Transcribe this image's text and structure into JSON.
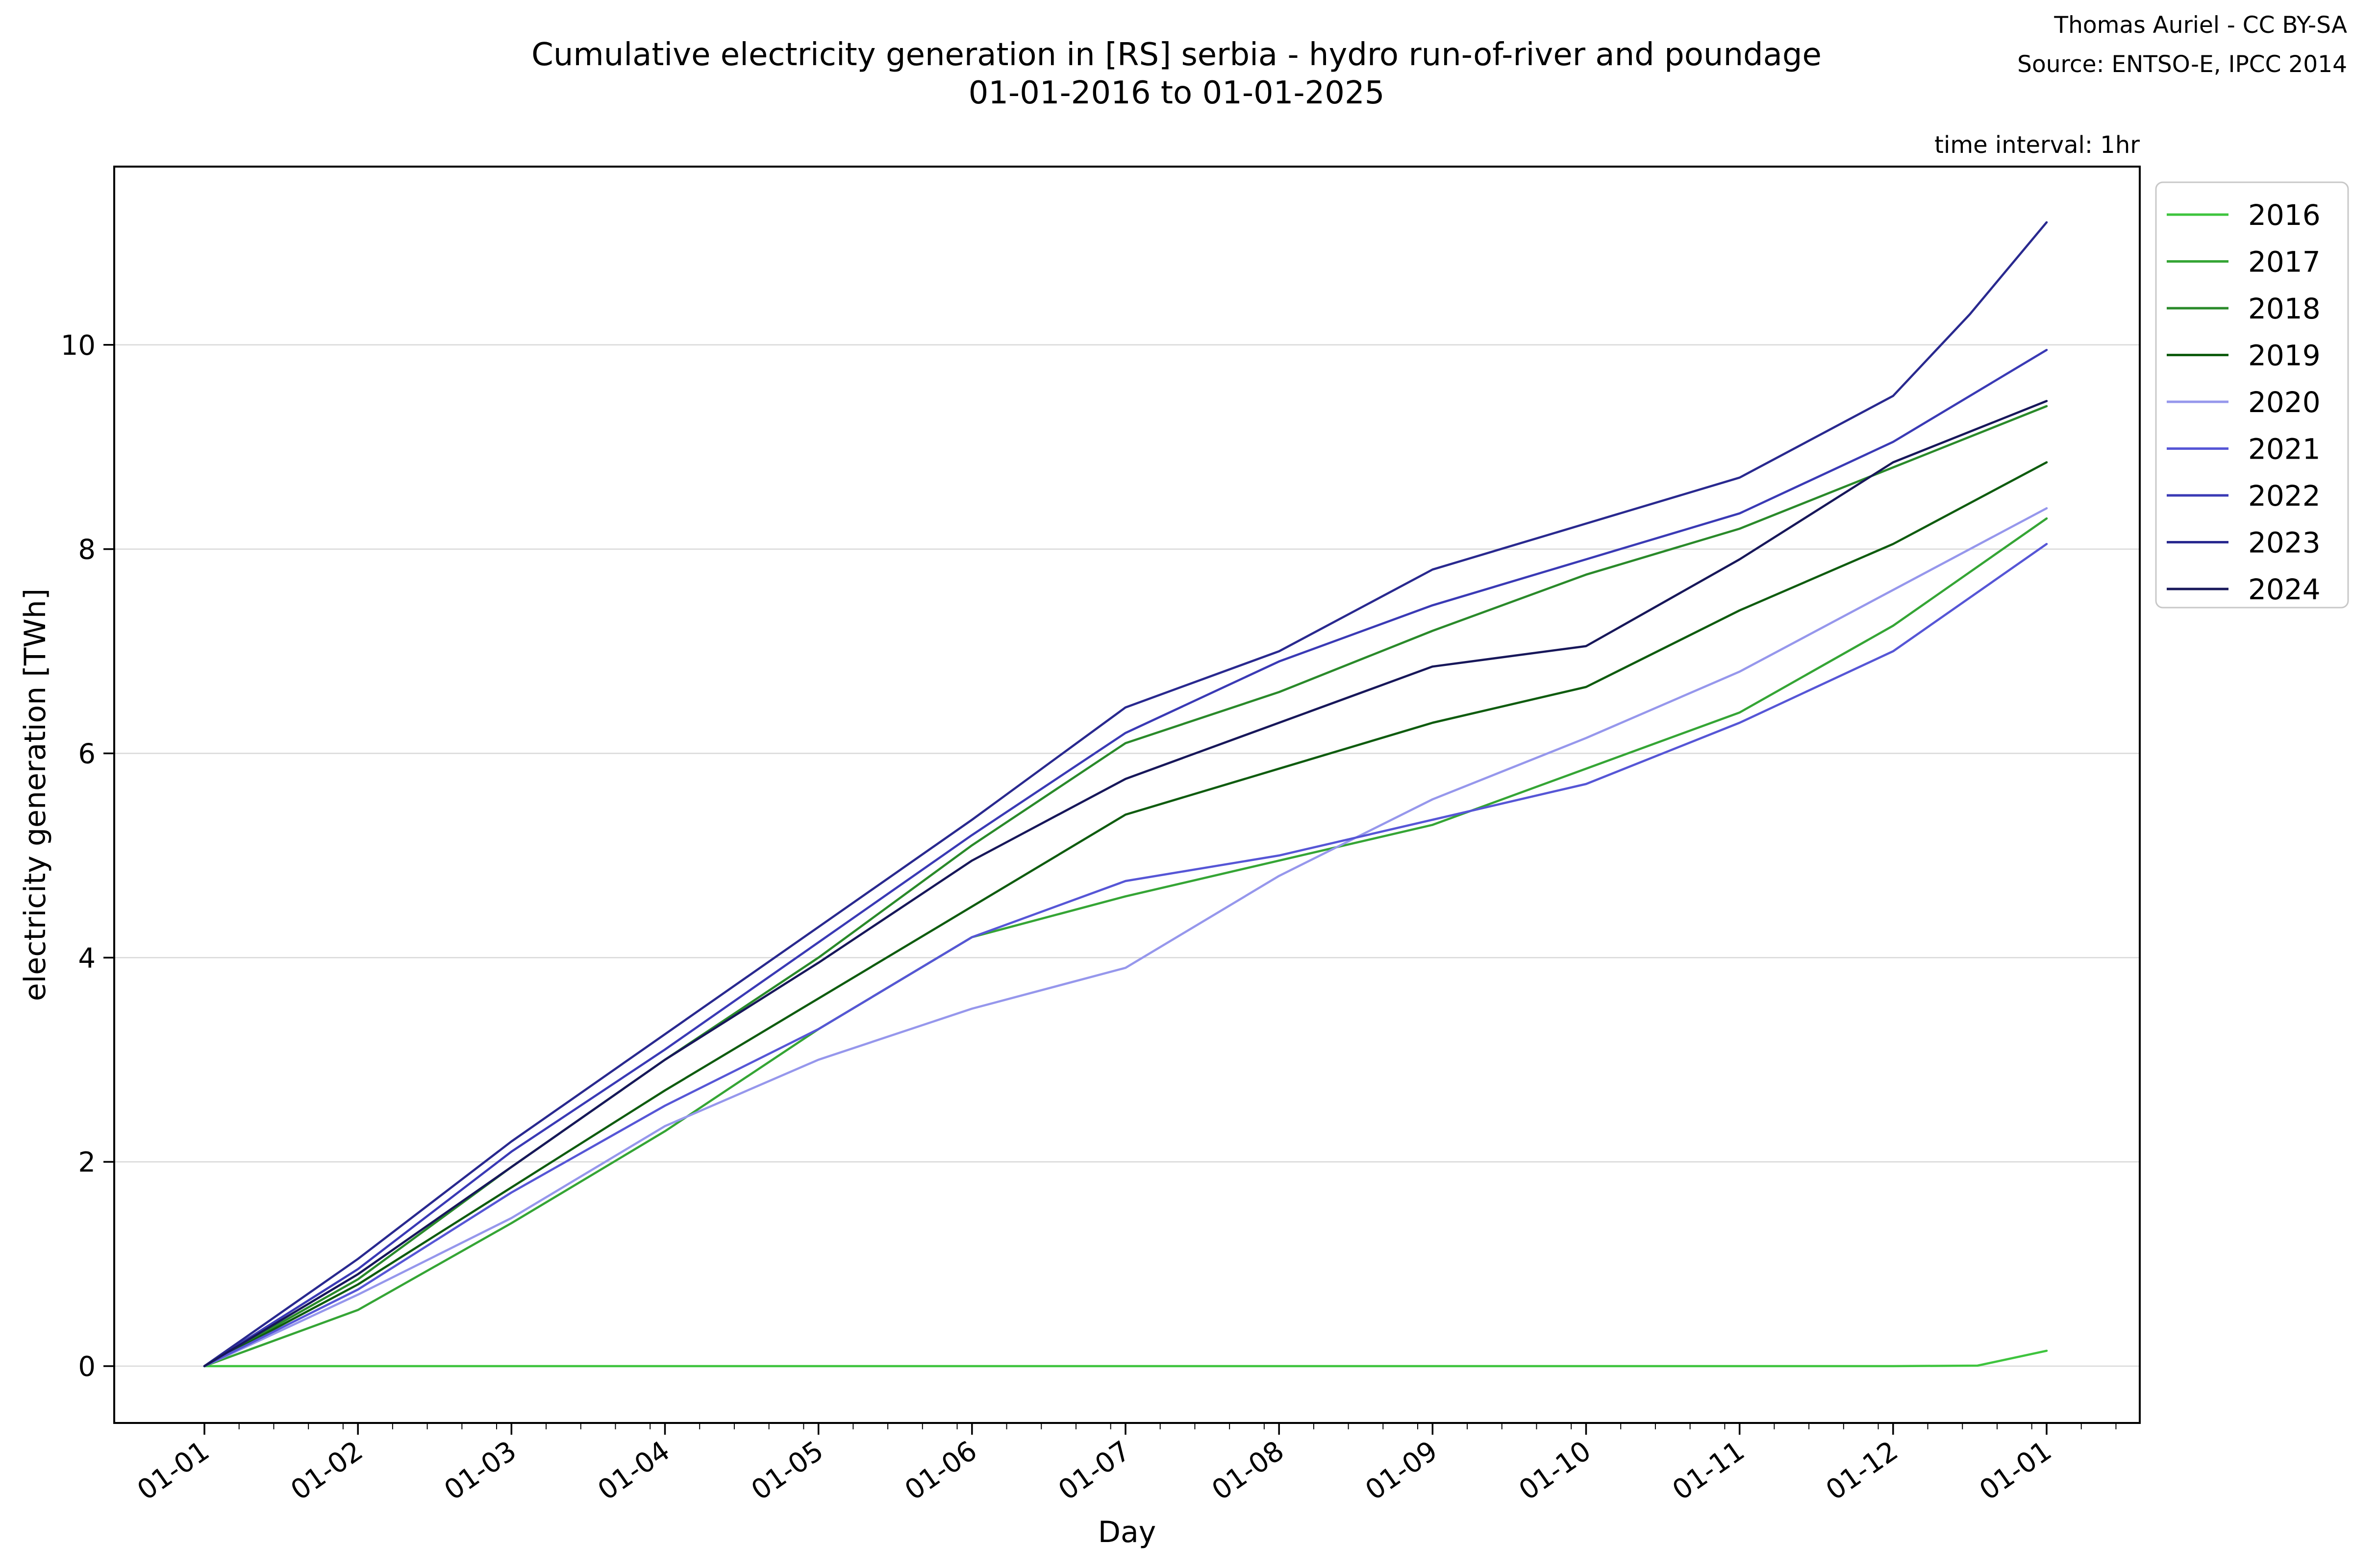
{
  "header": {
    "title_line1": "Cumulative electricity generation in [RS] serbia - hydro run-of-river and poundage",
    "title_line2": "01-01-2016 to 01-01-2025",
    "credit": "Thomas Auriel - CC BY-SA",
    "source": "Source: ENTSO-E, IPCC 2014",
    "time_interval": "time interval: 1hr"
  },
  "chart_data": {
    "type": "line",
    "title": "Cumulative electricity generation in [RS] serbia - hydro run-of-river and poundage 01-01-2016 to 01-01-2025",
    "xlabel": "Day",
    "ylabel": "electricity generation [TWh]",
    "x_tick_labels": [
      "01-01",
      "01-02",
      "01-03",
      "01-04",
      "01-05",
      "01-06",
      "01-07",
      "01-08",
      "01-09",
      "01-10",
      "01-11",
      "01-12",
      "01-01"
    ],
    "y_ticks": [
      0,
      2,
      4,
      6,
      8,
      10
    ],
    "ylim": [
      -0.56,
      11.74
    ],
    "x_range_months": [
      0,
      12
    ],
    "grid": "horizontal-only",
    "legend_position": "upper right",
    "axis_color": "#000000",
    "grid_color": "#d9d9d9",
    "legend_border_color": "#c8c8c8",
    "series": [
      {
        "name": "2016",
        "color": "#3ec43e",
        "points": [
          [
            0,
            0
          ],
          [
            1,
            0
          ],
          [
            2,
            0
          ],
          [
            3,
            0
          ],
          [
            4,
            0
          ],
          [
            5,
            0
          ],
          [
            6,
            0
          ],
          [
            7,
            0
          ],
          [
            8,
            0
          ],
          [
            9,
            0
          ],
          [
            10,
            0
          ],
          [
            11,
            0
          ],
          [
            11.55,
            0.005
          ],
          [
            12,
            0.15
          ]
        ]
      },
      {
        "name": "2017",
        "color": "#35a535",
        "points": [
          [
            0,
            0
          ],
          [
            1,
            0.55
          ],
          [
            2,
            1.4
          ],
          [
            3,
            2.3
          ],
          [
            4,
            3.3
          ],
          [
            5,
            4.2
          ],
          [
            6,
            4.6
          ],
          [
            7,
            4.95
          ],
          [
            8,
            5.3
          ],
          [
            9,
            5.85
          ],
          [
            10,
            6.4
          ],
          [
            11,
            7.25
          ],
          [
            12,
            8.3
          ]
        ]
      },
      {
        "name": "2018",
        "color": "#2a8a2a",
        "points": [
          [
            0,
            0
          ],
          [
            1,
            0.85
          ],
          [
            2,
            1.95
          ],
          [
            3,
            3.0
          ],
          [
            4,
            4.0
          ],
          [
            5,
            5.1
          ],
          [
            6,
            6.1
          ],
          [
            7,
            6.6
          ],
          [
            8,
            7.2
          ],
          [
            9,
            7.75
          ],
          [
            10,
            8.2
          ],
          [
            11,
            8.8
          ],
          [
            12,
            9.4
          ]
        ]
      },
      {
        "name": "2019",
        "color": "#0f5c0f",
        "points": [
          [
            0,
            0
          ],
          [
            1,
            0.8
          ],
          [
            2,
            1.75
          ],
          [
            3,
            2.7
          ],
          [
            4,
            3.6
          ],
          [
            5,
            4.5
          ],
          [
            6,
            5.4
          ],
          [
            7,
            5.85
          ],
          [
            8,
            6.3
          ],
          [
            9,
            6.65
          ],
          [
            10,
            7.4
          ],
          [
            11,
            8.05
          ],
          [
            12,
            8.85
          ]
        ]
      },
      {
        "name": "2020",
        "color": "#9697ec",
        "points": [
          [
            0,
            0
          ],
          [
            1,
            0.7
          ],
          [
            2,
            1.45
          ],
          [
            3,
            2.35
          ],
          [
            4,
            3.0
          ],
          [
            5,
            3.5
          ],
          [
            6,
            3.9
          ],
          [
            7,
            4.8
          ],
          [
            8,
            5.55
          ],
          [
            9,
            6.15
          ],
          [
            10,
            6.8
          ],
          [
            11,
            7.6
          ],
          [
            12,
            8.4
          ]
        ]
      },
      {
        "name": "2021",
        "color": "#5656d6",
        "points": [
          [
            0,
            0
          ],
          [
            1,
            0.75
          ],
          [
            2,
            1.7
          ],
          [
            3,
            2.55
          ],
          [
            4,
            3.3
          ],
          [
            5,
            4.2
          ],
          [
            6,
            4.75
          ],
          [
            7,
            5.0
          ],
          [
            8,
            5.35
          ],
          [
            9,
            5.7
          ],
          [
            10,
            6.3
          ],
          [
            11,
            7.0
          ],
          [
            12,
            8.05
          ]
        ]
      },
      {
        "name": "2022",
        "color": "#3a3ab5",
        "points": [
          [
            0,
            0
          ],
          [
            1,
            0.95
          ],
          [
            2,
            2.1
          ],
          [
            3,
            3.1
          ],
          [
            4,
            4.15
          ],
          [
            5,
            5.2
          ],
          [
            6,
            6.2
          ],
          [
            7,
            6.9
          ],
          [
            8,
            7.45
          ],
          [
            9,
            7.9
          ],
          [
            10,
            8.35
          ],
          [
            11,
            9.05
          ],
          [
            12,
            9.95
          ]
        ]
      },
      {
        "name": "2023",
        "color": "#29298f",
        "points": [
          [
            0,
            0
          ],
          [
            1,
            1.05
          ],
          [
            2,
            2.2
          ],
          [
            3,
            3.25
          ],
          [
            4,
            4.3
          ],
          [
            5,
            5.35
          ],
          [
            6,
            6.45
          ],
          [
            7,
            7.0
          ],
          [
            8,
            7.8
          ],
          [
            9,
            8.25
          ],
          [
            10,
            8.7
          ],
          [
            11,
            9.5
          ],
          [
            11.5,
            10.3
          ],
          [
            12,
            11.2
          ]
        ]
      },
      {
        "name": "2024",
        "color": "#17175a",
        "points": [
          [
            0,
            0
          ],
          [
            1,
            0.9
          ],
          [
            2,
            1.95
          ],
          [
            3,
            3.0
          ],
          [
            4,
            3.95
          ],
          [
            5,
            4.95
          ],
          [
            6,
            5.75
          ],
          [
            7,
            6.3
          ],
          [
            8,
            6.85
          ],
          [
            9,
            7.05
          ],
          [
            10,
            7.9
          ],
          [
            11,
            8.85
          ],
          [
            12,
            9.45
          ]
        ]
      }
    ]
  }
}
